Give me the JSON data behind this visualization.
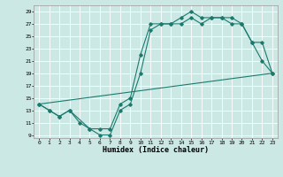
{
  "title": "",
  "xlabel": "Humidex (Indice chaleur)",
  "background_color": "#cce8e4",
  "grid_color": "#ffffff",
  "line_color": "#1a7a6e",
  "xlim": [
    -0.5,
    23.5
  ],
  "ylim": [
    8.5,
    30
  ],
  "xticks": [
    0,
    1,
    2,
    3,
    4,
    5,
    6,
    7,
    8,
    9,
    10,
    11,
    12,
    13,
    14,
    15,
    16,
    17,
    18,
    19,
    20,
    21,
    22,
    23
  ],
  "yticks": [
    9,
    11,
    13,
    15,
    17,
    19,
    21,
    23,
    25,
    27,
    29
  ],
  "line1_x": [
    0,
    1,
    2,
    3,
    4,
    5,
    6,
    7,
    8,
    9,
    10,
    11,
    12,
    13,
    14,
    15,
    16,
    17,
    18,
    19,
    20,
    21,
    22,
    23
  ],
  "line1_y": [
    14,
    13,
    12,
    13,
    11,
    10,
    9,
    9,
    13,
    14,
    19,
    26,
    27,
    27,
    27,
    28,
    27,
    28,
    28,
    27,
    27,
    24,
    21,
    19
  ],
  "line2_x": [
    0,
    1,
    2,
    3,
    5,
    6,
    7,
    8,
    9,
    10,
    11,
    12,
    13,
    14,
    15,
    16,
    17,
    18,
    19,
    20,
    21,
    22,
    23
  ],
  "line2_y": [
    14,
    13,
    12,
    13,
    10,
    10,
    10,
    14,
    15,
    22,
    27,
    27,
    27,
    28,
    29,
    28,
    28,
    28,
    28,
    27,
    24,
    24,
    19
  ],
  "line3_x": [
    0,
    23
  ],
  "line3_y": [
    14,
    19
  ]
}
